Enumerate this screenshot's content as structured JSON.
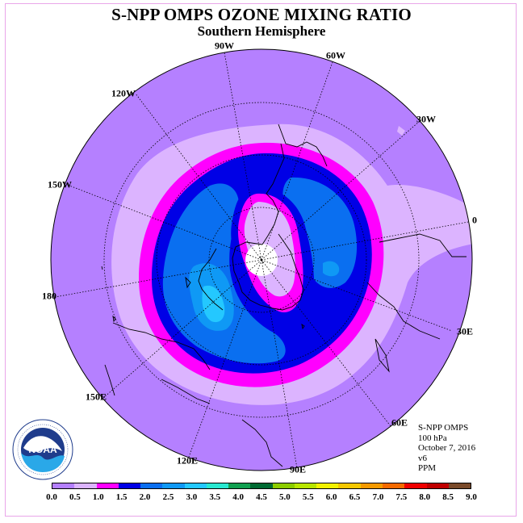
{
  "title": "S-NPP OMPS OZONE MIXING RATIO",
  "subtitle": "Southern Hemisphere",
  "longitude_labels": [
    "90W",
    "60W",
    "30W",
    "0",
    "30E",
    "60E",
    "90E",
    "120E",
    "150E",
    "180",
    "150W",
    "120W"
  ],
  "info": {
    "instrument": "S-NPP OMPS",
    "level": "100 hPa",
    "date": "October 7, 2016",
    "version": "v6",
    "units": "PPM"
  },
  "logo": {
    "name": "noaa-logo",
    "text": "NOAA"
  },
  "colorbar": {
    "ticks": [
      "0.0",
      "0.5",
      "1.0",
      "1.5",
      "2.0",
      "2.5",
      "3.0",
      "3.5",
      "4.0",
      "4.5",
      "5.0",
      "5.5",
      "6.0",
      "6.5",
      "7.0",
      "7.5",
      "8.0",
      "8.5",
      "9.0"
    ],
    "colors": [
      "#b580ff",
      "#dcb4ff",
      "#ff00ff",
      "#0000e6",
      "#0a6ff0",
      "#0f99f5",
      "#24c8ff",
      "#28e8d0",
      "#10a050",
      "#006a32",
      "#8ccd00",
      "#b8e600",
      "#f2f200",
      "#f5c800",
      "#f59a00",
      "#f56a00",
      "#f00000",
      "#c00000",
      "#7a4a2a"
    ]
  },
  "map_colors": {
    "outer": "#b580ff",
    "light": "#dcb4ff",
    "magenta": "#ff00ff",
    "dark_blue": "#0000e6",
    "mid_blue": "#0a6ff0",
    "light_blue": "#0f99f5",
    "cyan": "#24c8ff",
    "pole": "#ffffff"
  }
}
